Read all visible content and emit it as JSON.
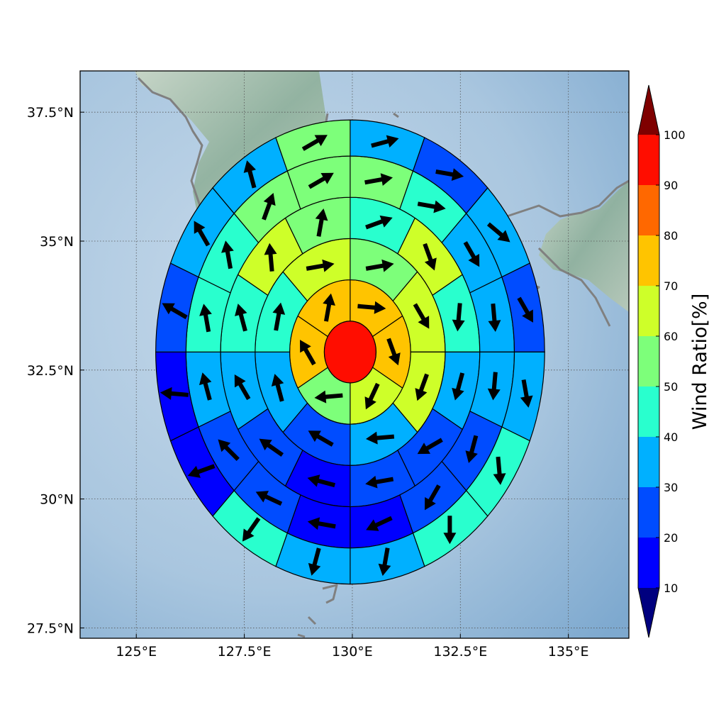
{
  "map": {
    "lon_ticks": [
      {
        "value": 125,
        "label": "125°E"
      },
      {
        "value": 127.5,
        "label": "127.5°E"
      },
      {
        "value": 130,
        "label": "130°E"
      },
      {
        "value": 132.5,
        "label": "132.5°E"
      },
      {
        "value": 135,
        "label": "135°E"
      }
    ],
    "lat_ticks": [
      {
        "value": 27.5,
        "label": "27.5°N"
      },
      {
        "value": 30,
        "label": "30°N"
      },
      {
        "value": 32.5,
        "label": "32.5°N"
      },
      {
        "value": 35,
        "label": "35°N"
      },
      {
        "value": 37.5,
        "label": "37.5°N"
      }
    ],
    "lon_range": [
      123.7,
      136.4
    ],
    "lat_range": [
      27.3,
      38.3
    ],
    "grid": true,
    "colors": {
      "coastline": "#808080",
      "sea": "#a9c6df",
      "land": "#9fb8a5",
      "ocean_deep": "#7ea9cf"
    }
  },
  "colorbar": {
    "label": "Wind Ratio[%]",
    "ticks": [
      "10",
      "20",
      "30",
      "40",
      "50",
      "60",
      "70",
      "80",
      "90",
      "100"
    ],
    "bins": [
      {
        "range": [
          10,
          20
        ],
        "color": "#0000ff"
      },
      {
        "range": [
          20,
          30
        ],
        "color": "#004cff"
      },
      {
        "range": [
          30,
          40
        ],
        "color": "#00b0ff"
      },
      {
        "range": [
          40,
          50
        ],
        "color": "#29ffce"
      },
      {
        "range": [
          50,
          60
        ],
        "color": "#7dff7a"
      },
      {
        "range": [
          60,
          70
        ],
        "color": "#ceff29"
      },
      {
        "range": [
          70,
          80
        ],
        "color": "#ffc400"
      },
      {
        "range": [
          80,
          90
        ],
        "color": "#ff6800"
      },
      {
        "range": [
          90,
          100
        ],
        "color": "#ff0d00"
      }
    ],
    "under_color": "#00007f",
    "over_color": "#7f0000"
  },
  "chart_data": {
    "type": "polar-sector-map",
    "center": {
      "lon": 129.95,
      "lat": 32.85
    },
    "ring_outer_radii_deg": [
      0.6,
      1.4,
      2.2,
      3.0,
      3.8,
      4.5
    ],
    "sectors_per_ring": [
      1,
      6,
      8,
      12,
      16,
      16
    ],
    "sector_start_deg": [
      0,
      0,
      0,
      0,
      0,
      0
    ],
    "values": [
      [
        95
      ],
      [
        72,
        72,
        63,
        55,
        74,
        74
      ],
      [
        56,
        64,
        64,
        35,
        25,
        35,
        45,
        63
      ],
      [
        46,
        64,
        42,
        36,
        25,
        24,
        16,
        23,
        33,
        48,
        64,
        56
      ],
      [
        53,
        43,
        35,
        33,
        34,
        27,
        23,
        18,
        16,
        23,
        25,
        35,
        43,
        45,
        56,
        53
      ],
      [
        35,
        25,
        33,
        23,
        35,
        45,
        45,
        38,
        35,
        45,
        15,
        15,
        23,
        34,
        33,
        53
      ]
    ],
    "arrow_dir_deg": [
      [
        null
      ],
      [
        95,
        160,
        205,
        265,
        330,
        10
      ],
      [
        80,
        150,
        200,
        265,
        300,
        345,
        10,
        80
      ],
      [
        70,
        160,
        185,
        195,
        240,
        260,
        285,
        305,
        330,
        345,
        355,
        10
      ],
      [
        80,
        100,
        150,
        175,
        185,
        195,
        210,
        245,
        280,
        295,
        315,
        345,
        350,
        350,
        20,
        60
      ],
      [
        75,
        100,
        130,
        150,
        170,
        175,
        180,
        190,
        195,
        215,
        250,
        275,
        300,
        330,
        345,
        60
      ]
    ]
  }
}
